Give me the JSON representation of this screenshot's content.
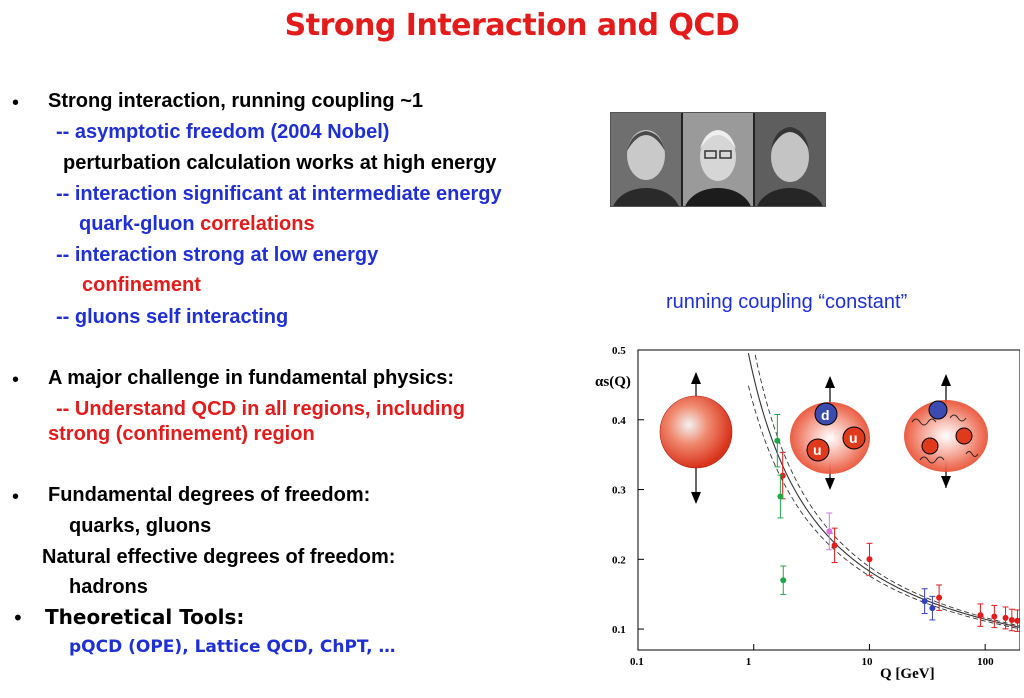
{
  "title": "Strong Interaction and QCD",
  "bullet_char": "•",
  "lines": [
    "Strong interaction, running coupling ~1",
    "-- asymptotic freedom (2004 Nobel)",
    "perturbation calculation works at high energy",
    "-- interaction significant at intermediate energy",
    "quark-gluon ",
    "correlations",
    "-- interaction strong at low energy",
    "confinement",
    "-- gluons self interacting",
    "A major challenge in fundamental physics:",
    "-- Understand QCD in all regions, including",
    "strong (confinement) region",
    "Fundamental degrees of freedom:",
    "quarks, gluons",
    "Natural effective degrees of freedom:",
    "hadrons",
    "Theoretical Tools:",
    "pQCD (OPE), Lattice QCD, ChPT, …"
  ],
  "caption": "running coupling “constant”",
  "chart_data": {
    "type": "scatter",
    "xlabel": "Q [GeV]",
    "ylabel": "αs(Q)",
    "xscale": "log",
    "xlim": [
      0.1,
      200
    ],
    "ylim": [
      0.07,
      0.5
    ],
    "xticks": [
      "0.1",
      "1",
      "10",
      "100"
    ],
    "yticks": [
      "0.1",
      "0.2",
      "0.3",
      "0.4",
      "0.5"
    ],
    "quark_labels": [
      "d",
      "u",
      "u"
    ],
    "series": [
      {
        "color": "#e31b1b",
        "points": [
          [
            1.78,
            0.32
          ],
          [
            5,
            0.22
          ],
          [
            10,
            0.2
          ],
          [
            40,
            0.145
          ],
          [
            91,
            0.12
          ],
          [
            120,
            0.118
          ],
          [
            150,
            0.116
          ],
          [
            170,
            0.113
          ],
          [
            190,
            0.112
          ]
        ]
      },
      {
        "color": "#1fa84a",
        "points": [
          [
            1.6,
            0.37
          ],
          [
            1.7,
            0.29
          ],
          [
            1.8,
            0.17
          ]
        ]
      },
      {
        "color": "#3040c0",
        "points": [
          [
            30,
            0.14
          ],
          [
            35,
            0.13
          ]
        ]
      },
      {
        "color": "#e070e0",
        "points": [
          [
            4.5,
            0.24
          ]
        ]
      }
    ]
  }
}
